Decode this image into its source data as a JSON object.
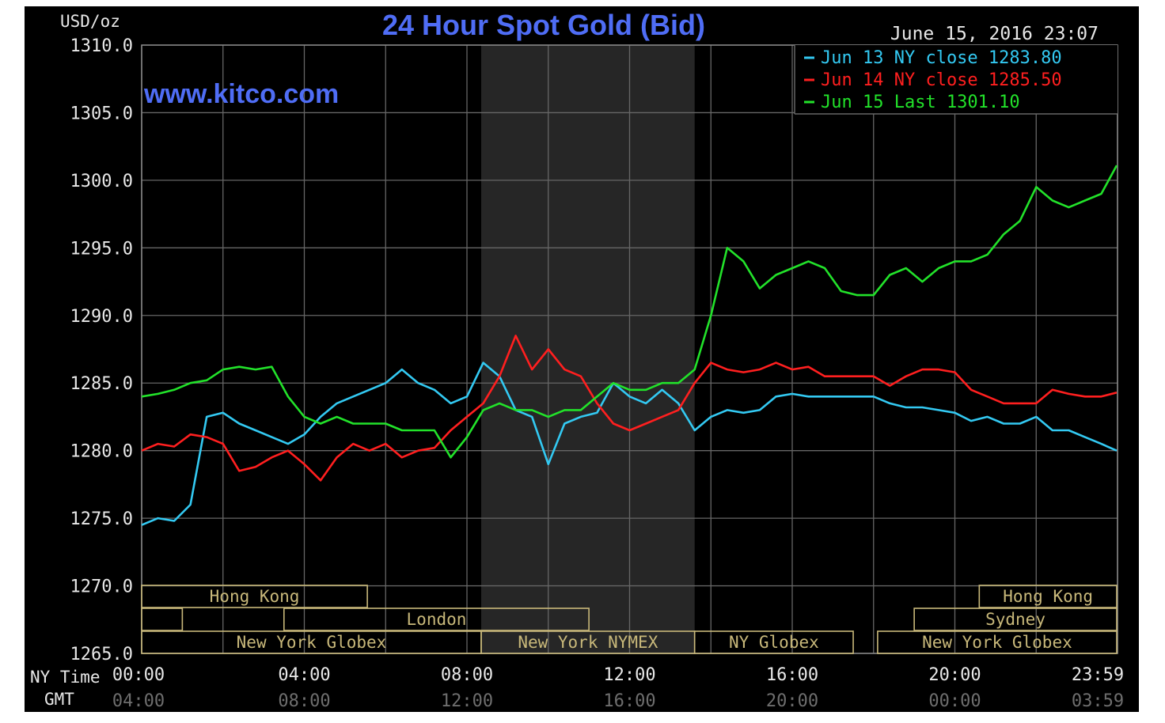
{
  "chart_data": {
    "type": "line",
    "title": "24 Hour Spot Gold (Bid)",
    "unit_label": "USD/oz",
    "watermark": "www.kitco.com",
    "timestamp": "June 15, 2016 23:07",
    "ylim": [
      1265,
      1310
    ],
    "y_ticks": [
      "1310.0",
      "1305.0",
      "1300.0",
      "1295.0",
      "1290.0",
      "1285.0",
      "1280.0",
      "1275.0",
      "1270.0",
      "1265.0"
    ],
    "x_row_labels": {
      "ny": "NY Time",
      "gmt": "GMT"
    },
    "x_ticks_ny": [
      "00:00",
      "04:00",
      "08:00",
      "12:00",
      "16:00",
      "20:00",
      "23:59"
    ],
    "x_ticks_gmt": [
      "04:00",
      "08:00",
      "12:00",
      "16:00",
      "20:00",
      "00:00",
      "03:59"
    ],
    "grid": true,
    "legend_position": "top-right",
    "colors": {
      "background": "#000000",
      "grid": "#666666",
      "title": "#4f6df5",
      "axis_text": "#e8e8e8",
      "gmt_text": "#6e6e6e",
      "session": "#c8b87a",
      "shade": "#262626"
    },
    "series": [
      {
        "name": "Jun 13",
        "legend_text": "Jun 13 NY close",
        "legend_value": "1283.80",
        "color": "#33c9f2",
        "x": [
          0,
          0.4,
          0.8,
          1.2,
          1.6,
          2,
          2.4,
          2.8,
          3.2,
          3.6,
          4,
          4.4,
          4.8,
          5.2,
          5.6,
          6,
          6.4,
          6.8,
          7.2,
          7.6,
          8,
          8.4,
          8.8,
          9.2,
          9.6,
          10,
          10.4,
          10.8,
          11.2,
          11.6,
          12,
          12.4,
          12.8,
          13.2,
          13.6,
          14,
          14.4,
          14.8,
          15.2,
          15.6,
          16,
          16.4,
          16.8,
          17.2,
          17.6,
          18,
          18.4,
          18.8,
          19.2,
          19.6,
          20,
          20.4,
          20.8,
          21.2,
          21.6,
          22,
          22.4,
          22.8,
          23.2,
          23.6,
          23.98
        ],
        "values": [
          1274.5,
          1275.0,
          1274.8,
          1276.0,
          1282.5,
          1282.8,
          1282.0,
          1281.5,
          1281.0,
          1280.5,
          1281.2,
          1282.5,
          1283.5,
          1284.0,
          1284.5,
          1285.0,
          1286.0,
          1285.0,
          1284.5,
          1283.5,
          1284.0,
          1286.5,
          1285.5,
          1283.0,
          1282.5,
          1279.0,
          1282.0,
          1282.5,
          1282.8,
          1285.0,
          1284.0,
          1283.5,
          1284.5,
          1283.5,
          1281.5,
          1282.5,
          1283.0,
          1282.8,
          1283.0,
          1284.0,
          1284.2,
          1284.0,
          1284.0,
          1284.0,
          1284.0,
          1284.0,
          1283.5,
          1283.2,
          1283.2,
          1283.0,
          1282.8,
          1282.2,
          1282.5,
          1282.0,
          1282.0,
          1282.5,
          1281.5,
          1281.5,
          1281.0,
          1280.5,
          1280.0
        ]
      },
      {
        "name": "Jun 14",
        "legend_text": "Jun 14 NY close",
        "legend_value": "1285.50",
        "color": "#ff1f1f",
        "x": [
          0,
          0.4,
          0.8,
          1.2,
          1.6,
          2,
          2.4,
          2.8,
          3.2,
          3.6,
          4,
          4.4,
          4.8,
          5.2,
          5.6,
          6,
          6.4,
          6.8,
          7.2,
          7.6,
          8,
          8.4,
          8.8,
          9.2,
          9.6,
          10,
          10.4,
          10.8,
          11.2,
          11.6,
          12,
          12.4,
          12.8,
          13.2,
          13.6,
          14,
          14.4,
          14.8,
          15.2,
          15.6,
          16,
          16.4,
          16.8,
          17.2,
          17.6,
          18,
          18.4,
          18.8,
          19.2,
          19.6,
          20,
          20.4,
          20.8,
          21.2,
          21.6,
          22,
          22.4,
          22.8,
          23.2,
          23.6,
          23.98
        ],
        "values": [
          1280.0,
          1280.5,
          1280.3,
          1281.2,
          1281.0,
          1280.5,
          1278.5,
          1278.8,
          1279.5,
          1280.0,
          1279.0,
          1277.8,
          1279.5,
          1280.5,
          1280.0,
          1280.5,
          1279.5,
          1280.0,
          1280.2,
          1281.5,
          1282.5,
          1283.5,
          1285.5,
          1288.5,
          1286.0,
          1287.5,
          1286.0,
          1285.5,
          1283.5,
          1282.0,
          1281.5,
          1282.0,
          1282.5,
          1283.0,
          1285.0,
          1286.5,
          1286.0,
          1285.8,
          1286.0,
          1286.5,
          1286.0,
          1286.2,
          1285.5,
          1285.5,
          1285.5,
          1285.5,
          1284.8,
          1285.5,
          1286.0,
          1286.0,
          1285.8,
          1284.5,
          1284.0,
          1283.5,
          1283.5,
          1283.5,
          1284.5,
          1284.2,
          1284.0,
          1284.0,
          1284.3
        ]
      },
      {
        "name": "Jun 15",
        "legend_text": "Jun 15 Last",
        "legend_value": "1301.10",
        "color": "#22e22a",
        "x": [
          0,
          0.4,
          0.8,
          1.2,
          1.6,
          2,
          2.4,
          2.8,
          3.2,
          3.6,
          4,
          4.4,
          4.8,
          5.2,
          5.6,
          6,
          6.4,
          6.8,
          7.2,
          7.6,
          8,
          8.4,
          8.8,
          9.2,
          9.6,
          10,
          10.4,
          10.8,
          11.2,
          11.6,
          12,
          12.4,
          12.8,
          13.2,
          13.6,
          14,
          14.4,
          14.8,
          15.2,
          15.6,
          16,
          16.4,
          16.8,
          17.2,
          17.6,
          18,
          18.4,
          18.8,
          19.2,
          19.6,
          20,
          20.4,
          20.8,
          21.2,
          21.6,
          22,
          22.4,
          22.8,
          23.2,
          23.6,
          23.98
        ],
        "values": [
          1284.0,
          1284.2,
          1284.5,
          1285.0,
          1285.2,
          1286.0,
          1286.2,
          1286.0,
          1286.2,
          1284.0,
          1282.5,
          1282.0,
          1282.5,
          1282.0,
          1282.0,
          1282.0,
          1281.5,
          1281.5,
          1281.5,
          1279.5,
          1281.0,
          1283.0,
          1283.5,
          1283.0,
          1283.0,
          1282.5,
          1283.0,
          1283.0,
          1284.0,
          1285.0,
          1284.5,
          1284.5,
          1285.0,
          1285.0,
          1286.0,
          1290.0,
          1295.0,
          1294.0,
          1292.0,
          1293.0,
          1293.5,
          1294.0,
          1293.5,
          1291.8,
          1291.5,
          1291.5,
          1293.0,
          1293.5,
          1292.5,
          1293.5,
          1294.0,
          1294.0,
          1294.5,
          1296.0,
          1297.0,
          1299.5,
          1298.5,
          1298.0,
          1298.5,
          1299.0,
          1301.1
        ]
      }
    ],
    "sessions": [
      {
        "label": "Hong Kong",
        "row": 0,
        "start": 0,
        "end": 5.55
      },
      {
        "label": "Hong Kong",
        "row": 0,
        "start": 20.6,
        "end": 23.98
      },
      {
        "label": "",
        "row": 1,
        "start": 0,
        "end": 1.0
      },
      {
        "label": "London",
        "row": 1,
        "start": 3.5,
        "end": 11.0
      },
      {
        "label": "Sydney",
        "row": 1,
        "start": 19.0,
        "end": 23.98
      },
      {
        "label": "New York Globex",
        "row": 2,
        "start": 0,
        "end": 8.35
      },
      {
        "label": "New York NYMEX",
        "row": 2,
        "start": 8.35,
        "end": 13.6
      },
      {
        "label": "NY Globex",
        "row": 2,
        "start": 13.6,
        "end": 17.5
      },
      {
        "label": "New York Globex",
        "row": 2,
        "start": 18.1,
        "end": 23.98
      }
    ],
    "shaded_range": [
      8.35,
      13.6
    ]
  }
}
